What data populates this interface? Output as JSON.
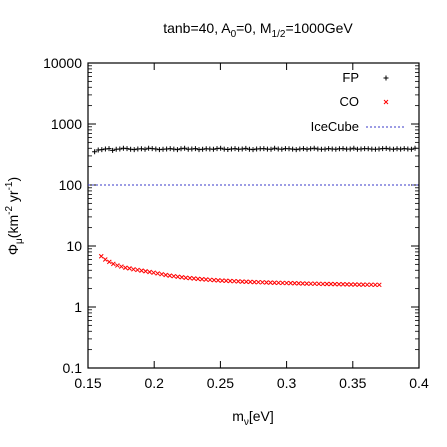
{
  "chart_data": {
    "type": "scatter",
    "title": {
      "parts": [
        {
          "t": "tanb=40, A"
        },
        {
          "t": "0",
          "sub": true
        },
        {
          "t": "=0, M"
        },
        {
          "t": "1/2",
          "sub": true
        },
        {
          "t": "=1000GeV"
        }
      ]
    },
    "xlabel": {
      "parts": [
        {
          "t": "m"
        },
        {
          "t": "ν",
          "sub": true
        },
        {
          "t": "[eV]"
        }
      ]
    },
    "ylabel": {
      "parts": [
        {
          "t": "Φ"
        },
        {
          "t": "μ",
          "sub": true
        },
        {
          "t": "(km"
        },
        {
          "t": "-2",
          "sup": true
        },
        {
          "t": " yr"
        },
        {
          "t": "-1",
          "sup": true
        },
        {
          "t": ")"
        }
      ]
    },
    "xlim": [
      0.15,
      0.4
    ],
    "ylim": [
      0.1,
      10000
    ],
    "yscale": "log",
    "xticks": [
      "0.15",
      "0.2",
      "0.25",
      "0.3",
      "0.35",
      "0.4"
    ],
    "yticks": [
      "0.1",
      "1",
      "10",
      "100",
      "1000",
      "10000"
    ],
    "legend_position": "top-right",
    "series": [
      {
        "name": "FP",
        "marker": "+",
        "color": "#000000",
        "x_range": [
          0.155,
          0.397
        ],
        "y_values": [
          350,
          375,
          380,
          390,
          395,
          370,
          385,
          390,
          400,
          395,
          385,
          380,
          390,
          392,
          385,
          400,
          395,
          390,
          380,
          385,
          390,
          395,
          388,
          380,
          392,
          400,
          385,
          390,
          395,
          380,
          385,
          392,
          390,
          385,
          395,
          400,
          388,
          382,
          390,
          395,
          385,
          390,
          398,
          385,
          380,
          390,
          392,
          395,
          388,
          385,
          400,
          390,
          385,
          395,
          392,
          388,
          380,
          390,
          395,
          385,
          392,
          400,
          390,
          385,
          388,
          395,
          390,
          385,
          392,
          395,
          388,
          390,
          400,
          385,
          390,
          395,
          392,
          388,
          385,
          390,
          395,
          398,
          390,
          385,
          392,
          388,
          395,
          390,
          385,
          400
        ]
      },
      {
        "name": "CO",
        "marker": "x",
        "color": "#ff0000",
        "x_range": [
          0.16,
          0.37
        ],
        "y_values": [
          6.8,
          6.0,
          5.5,
          5.1,
          4.8,
          4.6,
          4.4,
          4.3,
          4.15,
          4.05,
          3.95,
          3.85,
          3.75,
          3.65,
          3.55,
          3.45,
          3.35,
          3.27,
          3.2,
          3.13,
          3.07,
          3.02,
          2.97,
          2.93,
          2.89,
          2.85,
          2.82,
          2.79,
          2.76,
          2.73,
          2.71,
          2.69,
          2.67,
          2.65,
          2.63,
          2.61,
          2.59,
          2.58,
          2.56,
          2.55,
          2.54,
          2.52,
          2.51,
          2.5,
          2.49,
          2.48,
          2.47,
          2.46,
          2.45,
          2.44,
          2.43,
          2.42,
          2.41,
          2.41,
          2.4,
          2.39,
          2.38,
          2.38,
          2.37,
          2.36,
          2.36,
          2.35,
          2.34,
          2.34,
          2.33,
          2.33,
          2.32,
          2.32,
          2.31,
          2.31
        ]
      },
      {
        "name": "IceCube",
        "line_style": "dotted",
        "color": "#3a3ac8",
        "y": 100
      }
    ]
  },
  "colors": {
    "fp": "#000000",
    "co": "#ff0000",
    "icecube": "#3a3ac8"
  }
}
